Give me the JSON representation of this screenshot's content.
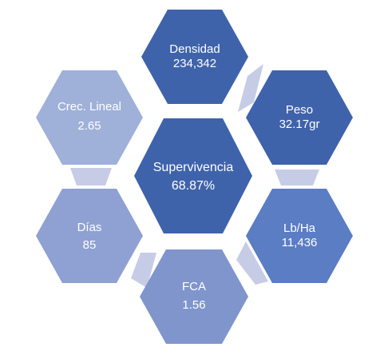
{
  "hexagons": [
    {
      "id": "densidad",
      "label": "Densidad",
      "value": "234,342",
      "color": "#3f63ab"
    },
    {
      "id": "peso",
      "label": "Peso",
      "value": "32.17gr",
      "color": "#3f63ab"
    },
    {
      "id": "lb-ha",
      "label": "Lb/Ha",
      "value": "11,436",
      "color": "#5a7dc3"
    },
    {
      "id": "fca",
      "label": "FCA",
      "value": "1.56",
      "color": "#7f95cc"
    },
    {
      "id": "dias",
      "label": "Días",
      "value": "85",
      "color": "#8ea1d2"
    },
    {
      "id": "crec-lineal",
      "label": "Crec. Lineal",
      "value": "2.65",
      "color": "#9fb0d9"
    },
    {
      "id": "supervivencia",
      "label": "Supervivencia",
      "value": "68.87%",
      "color": "#3f63ab"
    }
  ],
  "connector_color": "#c7cce6"
}
